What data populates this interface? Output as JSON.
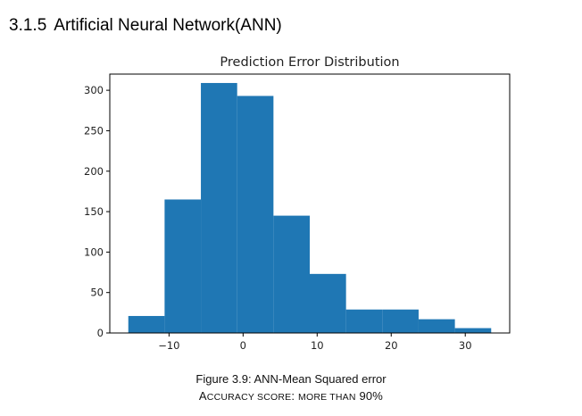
{
  "heading": {
    "number": "3.1.5",
    "title": "Artificial Neural Network(ANN)"
  },
  "chart_data": {
    "type": "histogram",
    "title": "Prediction Error Distribution",
    "xlabel": "",
    "ylabel": "",
    "bin_edges": [
      -15.5,
      -10.6,
      -5.7,
      -0.8,
      4.1,
      9.0,
      13.9,
      18.8,
      23.7,
      28.6,
      33.5
    ],
    "values": [
      21,
      165,
      309,
      293,
      145,
      73,
      29,
      29,
      17,
      6
    ],
    "xlim": [
      -18,
      36
    ],
    "ylim": [
      0,
      320
    ],
    "x_ticks": [
      -10,
      0,
      10,
      20,
      30
    ],
    "x_tick_labels": [
      "−10",
      "0",
      "10",
      "20",
      "30"
    ],
    "y_ticks": [
      0,
      50,
      100,
      150,
      200,
      250,
      300
    ],
    "y_tick_labels": [
      "0",
      "50",
      "100",
      "150",
      "200",
      "250",
      "300"
    ],
    "bar_color": "#1f77b4",
    "grid": false,
    "legend": "none"
  },
  "caption": {
    "figure_label": "Figure 3.9: ANN-Mean Squared error",
    "accuracy_parts": [
      {
        "text": "A",
        "size": "big"
      },
      {
        "text": "CCURACY SCORE",
        "size": "small"
      },
      {
        "text": ": ",
        "size": "big"
      },
      {
        "text": "MORE THAN",
        "size": "small"
      },
      {
        "text": " 90%",
        "size": "big"
      }
    ]
  }
}
